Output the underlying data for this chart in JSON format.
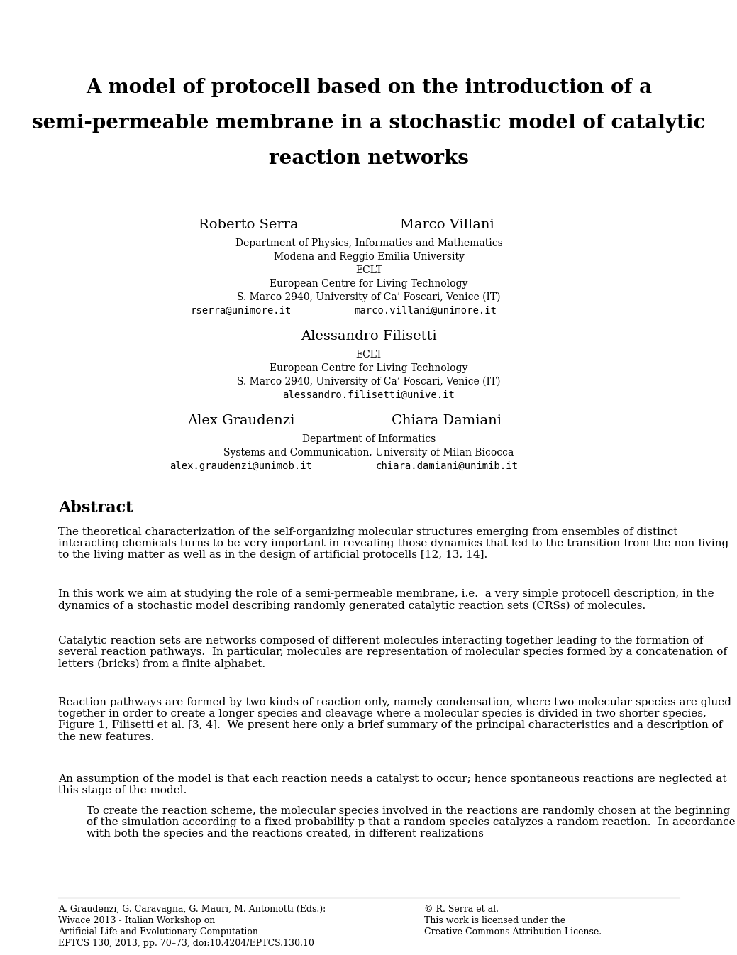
{
  "bg_color": "#ffffff",
  "title_lines": [
    "A model of protocell based on the introduction of a",
    "semi-permeable membrane in a stochastic model of catalytic",
    "reaction networks"
  ],
  "title_fontsize": 20,
  "author_line1_left": "Roberto Serra",
  "author_line1_right": "Marco Villani",
  "author_line1_fontsize": 14,
  "affil1_lines": [
    "Department of Physics, Informatics and Mathematics",
    "Modena and Reggio Emilia University",
    "ECLT",
    "European Centre for Living Technology",
    "S. Marco 2940, University of Ca’ Foscari, Venice (IT)"
  ],
  "email_line1_left": "rserra@unimore.it",
  "email_line1_right": "marco.villani@unimore.it",
  "author_line2": "Alessandro Filisetti",
  "affil2_lines": [
    "ECLT",
    "European Centre for Living Technology",
    "S. Marco 2940, University of Ca’ Foscari, Venice (IT)"
  ],
  "email_line2": "alessandro.filisetti@unive.it",
  "author_line3_left": "Alex Graudenzi",
  "author_line3_right": "Chiara Damiani",
  "affil3_lines": [
    "Department of Informatics",
    "Systems and Communication, University of Milan Bicocca"
  ],
  "email_line3_left": "alex.graudenzi@unimob.it",
  "email_line3_right": "chiara.damiani@unimib.it",
  "abstract_title": "Abstract",
  "abstract_paragraphs": [
    {
      "indent": false,
      "text": "The theoretical characterization of the self-organizing molecular structures emerging from ensembles of distinct interacting chemicals turns to be very important in revealing those dynamics that led to the transition from the non-living to the living matter as well as in the design of artificial protocells [12, 13, 14]."
    },
    {
      "indent": false,
      "text": "In this work we aim at studying the role of a semi-permeable membrane, i.e.  a very simple protocell description, in the dynamics of a stochastic model describing randomly generated catalytic reaction sets (CRSs) of molecules."
    },
    {
      "indent": false,
      "text": "Catalytic reaction sets are networks composed of different molecules interacting together leading to the formation of several reaction pathways.  In particular, molecules are representation of molecular species formed by a concatenation of letters (bricks) from a finite alphabet."
    },
    {
      "indent": false,
      "text": "Reaction pathways are formed by two kinds of reaction only, namely condensation, where two molecular species are glued together in order to create a longer species and cleavage where a molecular species is divided in two shorter species, Figure 1, Filisetti et al. [3, 4].  We present here only a brief summary of the principal characteristics and a description of the new features."
    },
    {
      "indent": false,
      "text": "An assumption of the model is that each reaction needs a catalyst to occur; hence spontaneous reactions are neglected at this stage of the model."
    },
    {
      "indent": true,
      "text": "To create the reaction scheme, the molecular species involved in the reactions are randomly chosen at the beginning of the simulation according to a fixed probability p that a random species catalyzes a random reaction.  In accordance with both the species and the reactions created, in different realizations"
    }
  ],
  "footer_left_lines": [
    "A. Graudenzi, G. Caravagna, G. Mauri, M. Antoniotti (Eds.):",
    "Wivace 2013 - Italian Workshop on",
    "Artificial Life and Evolutionary Computation",
    "EPTCS 130, 2013, pp. 70–73, doi:10.4204/EPTCS.130.10"
  ],
  "footer_right_lines": [
    "© R. Serra et al.",
    "This work is licensed under the",
    "Creative Commons Attribution License."
  ],
  "small_fontsize": 9,
  "body_fontsize": 11,
  "affil_fontsize": 10,
  "abstract_title_fontsize": 16
}
